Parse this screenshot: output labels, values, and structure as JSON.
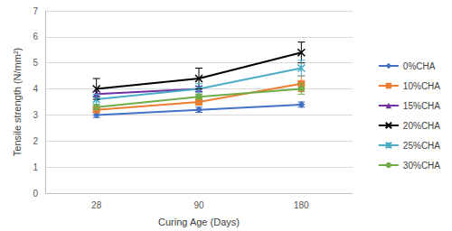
{
  "chart_data": {
    "type": "line",
    "x_label": "Curing Age (Days)",
    "y_label": "Tensile strength (N/mm²)",
    "categories": [
      "28",
      "90",
      "180"
    ],
    "ylim": [
      0,
      7
    ],
    "yticks": [
      0,
      1,
      2,
      3,
      4,
      5,
      6,
      7
    ],
    "grid": true,
    "legend": "right",
    "series": [
      {
        "name": "0%CHA",
        "color": "#4472C4",
        "marker": "diamond",
        "values": [
          3.0,
          3.2,
          3.4
        ],
        "errors": [
          0.1,
          0.1,
          0.1
        ]
      },
      {
        "name": "10%CHA",
        "color": "#ED7D31",
        "marker": "square",
        "values": [
          3.2,
          3.5,
          4.2
        ],
        "errors": [
          0.1,
          0.1,
          0.3
        ]
      },
      {
        "name": "15%CHA",
        "color": "#7030A0",
        "marker": "triangle",
        "values": [
          3.8,
          4.0,
          null
        ],
        "errors": [
          0.1,
          0.1,
          null
        ]
      },
      {
        "name": "20%CHA",
        "color": "#000000",
        "marker": "x",
        "values": [
          4.0,
          4.4,
          5.4
        ],
        "errors": [
          0.4,
          0.4,
          0.4
        ]
      },
      {
        "name": "25%CHA",
        "color": "#4BACC6",
        "marker": "star",
        "values": [
          3.6,
          4.0,
          4.8
        ],
        "errors": [
          0.2,
          0.2,
          0.3
        ]
      },
      {
        "name": "30%CHA",
        "color": "#70AD47",
        "marker": "circle",
        "values": [
          3.3,
          3.7,
          4.0
        ],
        "errors": [
          0.1,
          0.1,
          0.2
        ]
      }
    ]
  }
}
